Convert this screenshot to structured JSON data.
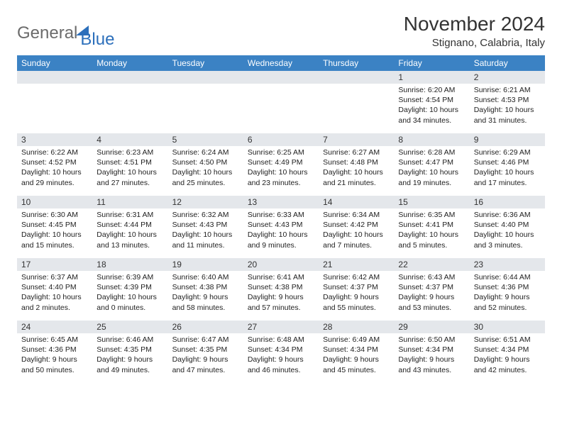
{
  "logo": {
    "part1": "General",
    "part2": "Blue"
  },
  "title": "November 2024",
  "location": "Stignano, Calabria, Italy",
  "weekdays": [
    "Sunday",
    "Monday",
    "Tuesday",
    "Wednesday",
    "Thursday",
    "Friday",
    "Saturday"
  ],
  "header_bg": "#3b82c4",
  "daynum_bg": "#e4e7eb",
  "weeks": [
    [
      {
        "n": "",
        "lines": []
      },
      {
        "n": "",
        "lines": []
      },
      {
        "n": "",
        "lines": []
      },
      {
        "n": "",
        "lines": []
      },
      {
        "n": "",
        "lines": []
      },
      {
        "n": "1",
        "lines": [
          "Sunrise: 6:20 AM",
          "Sunset: 4:54 PM",
          "Daylight: 10 hours and 34 minutes."
        ]
      },
      {
        "n": "2",
        "lines": [
          "Sunrise: 6:21 AM",
          "Sunset: 4:53 PM",
          "Daylight: 10 hours and 31 minutes."
        ]
      }
    ],
    [
      {
        "n": "3",
        "lines": [
          "Sunrise: 6:22 AM",
          "Sunset: 4:52 PM",
          "Daylight: 10 hours and 29 minutes."
        ]
      },
      {
        "n": "4",
        "lines": [
          "Sunrise: 6:23 AM",
          "Sunset: 4:51 PM",
          "Daylight: 10 hours and 27 minutes."
        ]
      },
      {
        "n": "5",
        "lines": [
          "Sunrise: 6:24 AM",
          "Sunset: 4:50 PM",
          "Daylight: 10 hours and 25 minutes."
        ]
      },
      {
        "n": "6",
        "lines": [
          "Sunrise: 6:25 AM",
          "Sunset: 4:49 PM",
          "Daylight: 10 hours and 23 minutes."
        ]
      },
      {
        "n": "7",
        "lines": [
          "Sunrise: 6:27 AM",
          "Sunset: 4:48 PM",
          "Daylight: 10 hours and 21 minutes."
        ]
      },
      {
        "n": "8",
        "lines": [
          "Sunrise: 6:28 AM",
          "Sunset: 4:47 PM",
          "Daylight: 10 hours and 19 minutes."
        ]
      },
      {
        "n": "9",
        "lines": [
          "Sunrise: 6:29 AM",
          "Sunset: 4:46 PM",
          "Daylight: 10 hours and 17 minutes."
        ]
      }
    ],
    [
      {
        "n": "10",
        "lines": [
          "Sunrise: 6:30 AM",
          "Sunset: 4:45 PM",
          "Daylight: 10 hours and 15 minutes."
        ]
      },
      {
        "n": "11",
        "lines": [
          "Sunrise: 6:31 AM",
          "Sunset: 4:44 PM",
          "Daylight: 10 hours and 13 minutes."
        ]
      },
      {
        "n": "12",
        "lines": [
          "Sunrise: 6:32 AM",
          "Sunset: 4:43 PM",
          "Daylight: 10 hours and 11 minutes."
        ]
      },
      {
        "n": "13",
        "lines": [
          "Sunrise: 6:33 AM",
          "Sunset: 4:43 PM",
          "Daylight: 10 hours and 9 minutes."
        ]
      },
      {
        "n": "14",
        "lines": [
          "Sunrise: 6:34 AM",
          "Sunset: 4:42 PM",
          "Daylight: 10 hours and 7 minutes."
        ]
      },
      {
        "n": "15",
        "lines": [
          "Sunrise: 6:35 AM",
          "Sunset: 4:41 PM",
          "Daylight: 10 hours and 5 minutes."
        ]
      },
      {
        "n": "16",
        "lines": [
          "Sunrise: 6:36 AM",
          "Sunset: 4:40 PM",
          "Daylight: 10 hours and 3 minutes."
        ]
      }
    ],
    [
      {
        "n": "17",
        "lines": [
          "Sunrise: 6:37 AM",
          "Sunset: 4:40 PM",
          "Daylight: 10 hours and 2 minutes."
        ]
      },
      {
        "n": "18",
        "lines": [
          "Sunrise: 6:39 AM",
          "Sunset: 4:39 PM",
          "Daylight: 10 hours and 0 minutes."
        ]
      },
      {
        "n": "19",
        "lines": [
          "Sunrise: 6:40 AM",
          "Sunset: 4:38 PM",
          "Daylight: 9 hours and 58 minutes."
        ]
      },
      {
        "n": "20",
        "lines": [
          "Sunrise: 6:41 AM",
          "Sunset: 4:38 PM",
          "Daylight: 9 hours and 57 minutes."
        ]
      },
      {
        "n": "21",
        "lines": [
          "Sunrise: 6:42 AM",
          "Sunset: 4:37 PM",
          "Daylight: 9 hours and 55 minutes."
        ]
      },
      {
        "n": "22",
        "lines": [
          "Sunrise: 6:43 AM",
          "Sunset: 4:37 PM",
          "Daylight: 9 hours and 53 minutes."
        ]
      },
      {
        "n": "23",
        "lines": [
          "Sunrise: 6:44 AM",
          "Sunset: 4:36 PM",
          "Daylight: 9 hours and 52 minutes."
        ]
      }
    ],
    [
      {
        "n": "24",
        "lines": [
          "Sunrise: 6:45 AM",
          "Sunset: 4:36 PM",
          "Daylight: 9 hours and 50 minutes."
        ]
      },
      {
        "n": "25",
        "lines": [
          "Sunrise: 6:46 AM",
          "Sunset: 4:35 PM",
          "Daylight: 9 hours and 49 minutes."
        ]
      },
      {
        "n": "26",
        "lines": [
          "Sunrise: 6:47 AM",
          "Sunset: 4:35 PM",
          "Daylight: 9 hours and 47 minutes."
        ]
      },
      {
        "n": "27",
        "lines": [
          "Sunrise: 6:48 AM",
          "Sunset: 4:34 PM",
          "Daylight: 9 hours and 46 minutes."
        ]
      },
      {
        "n": "28",
        "lines": [
          "Sunrise: 6:49 AM",
          "Sunset: 4:34 PM",
          "Daylight: 9 hours and 45 minutes."
        ]
      },
      {
        "n": "29",
        "lines": [
          "Sunrise: 6:50 AM",
          "Sunset: 4:34 PM",
          "Daylight: 9 hours and 43 minutes."
        ]
      },
      {
        "n": "30",
        "lines": [
          "Sunrise: 6:51 AM",
          "Sunset: 4:34 PM",
          "Daylight: 9 hours and 42 minutes."
        ]
      }
    ]
  ]
}
